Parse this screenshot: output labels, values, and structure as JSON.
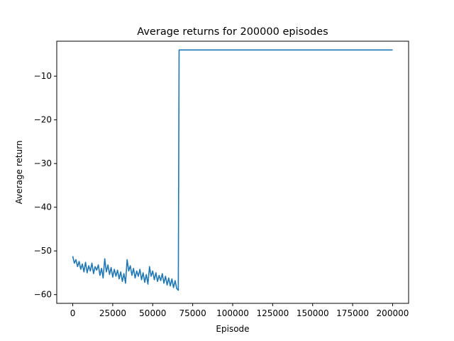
{
  "chart_data": {
    "type": "line",
    "title": "Average returns for 200000 episodes",
    "xlabel": "Episode",
    "ylabel": "Average return",
    "xlim": [
      -10000,
      210000
    ],
    "ylim": [
      -62,
      -2
    ],
    "xticks": [
      0,
      25000,
      50000,
      75000,
      100000,
      125000,
      150000,
      175000,
      200000
    ],
    "yticks": [
      -60,
      -50,
      -40,
      -30,
      -20,
      -10
    ],
    "grid": false,
    "color": "#1f77b4",
    "series": [
      {
        "x": [
          0,
          1000,
          2000,
          3000,
          4000,
          5000,
          6000,
          7000,
          8000,
          9000,
          10000,
          11000,
          12000,
          13000,
          14000,
          15000,
          16000,
          17000,
          18000,
          19000,
          20000,
          21000,
          22000,
          23000,
          24000,
          25000,
          26000,
          27000,
          28000,
          29000,
          30000,
          31000,
          32000,
          33000,
          34000,
          35000,
          36000,
          37000,
          38000,
          39000,
          40000,
          41000,
          42000,
          43000,
          44000,
          45000,
          46000,
          47000,
          48000,
          49000,
          50000,
          51000,
          52000,
          53000,
          54000,
          55000,
          56000,
          57000,
          58000,
          59000,
          60000,
          61000,
          62000,
          63000,
          64000,
          65000,
          66000,
          66500,
          67000,
          80000,
          100000,
          125000,
          150000,
          175000,
          200000
        ],
        "y": [
          -51.2,
          -52.8,
          -52.0,
          -53.6,
          -52.4,
          -54.2,
          -53.0,
          -54.8,
          -52.6,
          -55.0,
          -53.4,
          -54.6,
          -52.8,
          -55.2,
          -53.6,
          -54.4,
          -53.2,
          -55.6,
          -54.0,
          -56.2,
          -51.8,
          -54.8,
          -53.2,
          -55.4,
          -53.8,
          -56.0,
          -54.2,
          -55.8,
          -54.4,
          -56.4,
          -54.8,
          -57.0,
          -55.2,
          -57.4,
          -52.0,
          -54.6,
          -53.4,
          -55.6,
          -54.0,
          -56.2,
          -54.6,
          -55.8,
          -54.2,
          -56.6,
          -55.0,
          -57.2,
          -55.4,
          -57.6,
          -53.6,
          -55.8,
          -54.6,
          -56.6,
          -55.0,
          -57.0,
          -55.6,
          -56.8,
          -55.2,
          -57.4,
          -55.8,
          -57.8,
          -56.2,
          -58.0,
          -56.4,
          -58.4,
          -56.8,
          -58.6,
          -59.0,
          -4.0,
          -4.0,
          -4.0,
          -4.0,
          -4.0,
          -4.0,
          -4.0,
          -4.0
        ]
      }
    ]
  }
}
